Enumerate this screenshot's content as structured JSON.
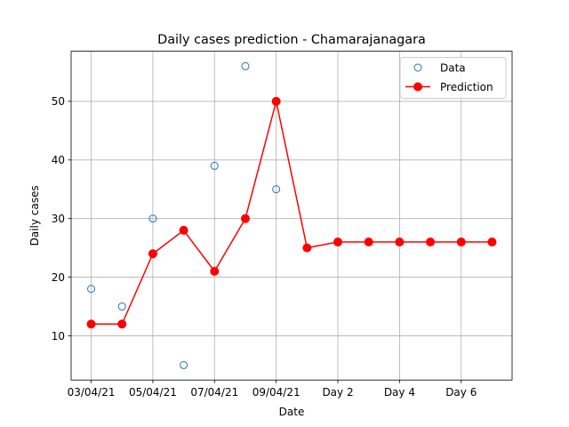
{
  "chart_data": {
    "type": "line",
    "title": "Daily cases prediction - Chamarajanagara",
    "xlabel": "Date",
    "ylabel": "Daily cases",
    "x_tick_labels": [
      "03/04/21",
      "05/04/21",
      "07/04/21",
      "09/04/21",
      "Day 2",
      "Day 4",
      "Day 6"
    ],
    "y_ticks": [
      10,
      20,
      30,
      40,
      50
    ],
    "ylim": [
      2.45,
      58.55
    ],
    "grid": true,
    "legend_position": "top-right",
    "series": [
      {
        "name": "Data",
        "style": "scatter-open-circle",
        "color": "#1f77b4",
        "x": [
          "03/04/21",
          "04/04/21",
          "05/04/21",
          "06/04/21",
          "07/04/21",
          "08/04/21",
          "09/04/21"
        ],
        "values": [
          18,
          15,
          30,
          5,
          39,
          56,
          35
        ]
      },
      {
        "name": "Prediction",
        "style": "line-filled-circle",
        "color": "#ff0000",
        "x": [
          "03/04/21",
          "04/04/21",
          "05/04/21",
          "06/04/21",
          "07/04/21",
          "08/04/21",
          "09/04/21",
          "Day 1",
          "Day 2",
          "Day 3",
          "Day 4",
          "Day 5",
          "Day 6",
          "Day 7"
        ],
        "values": [
          12,
          12,
          24,
          28,
          21,
          30,
          50,
          25,
          26,
          26,
          26,
          26,
          26,
          26
        ]
      }
    ]
  }
}
